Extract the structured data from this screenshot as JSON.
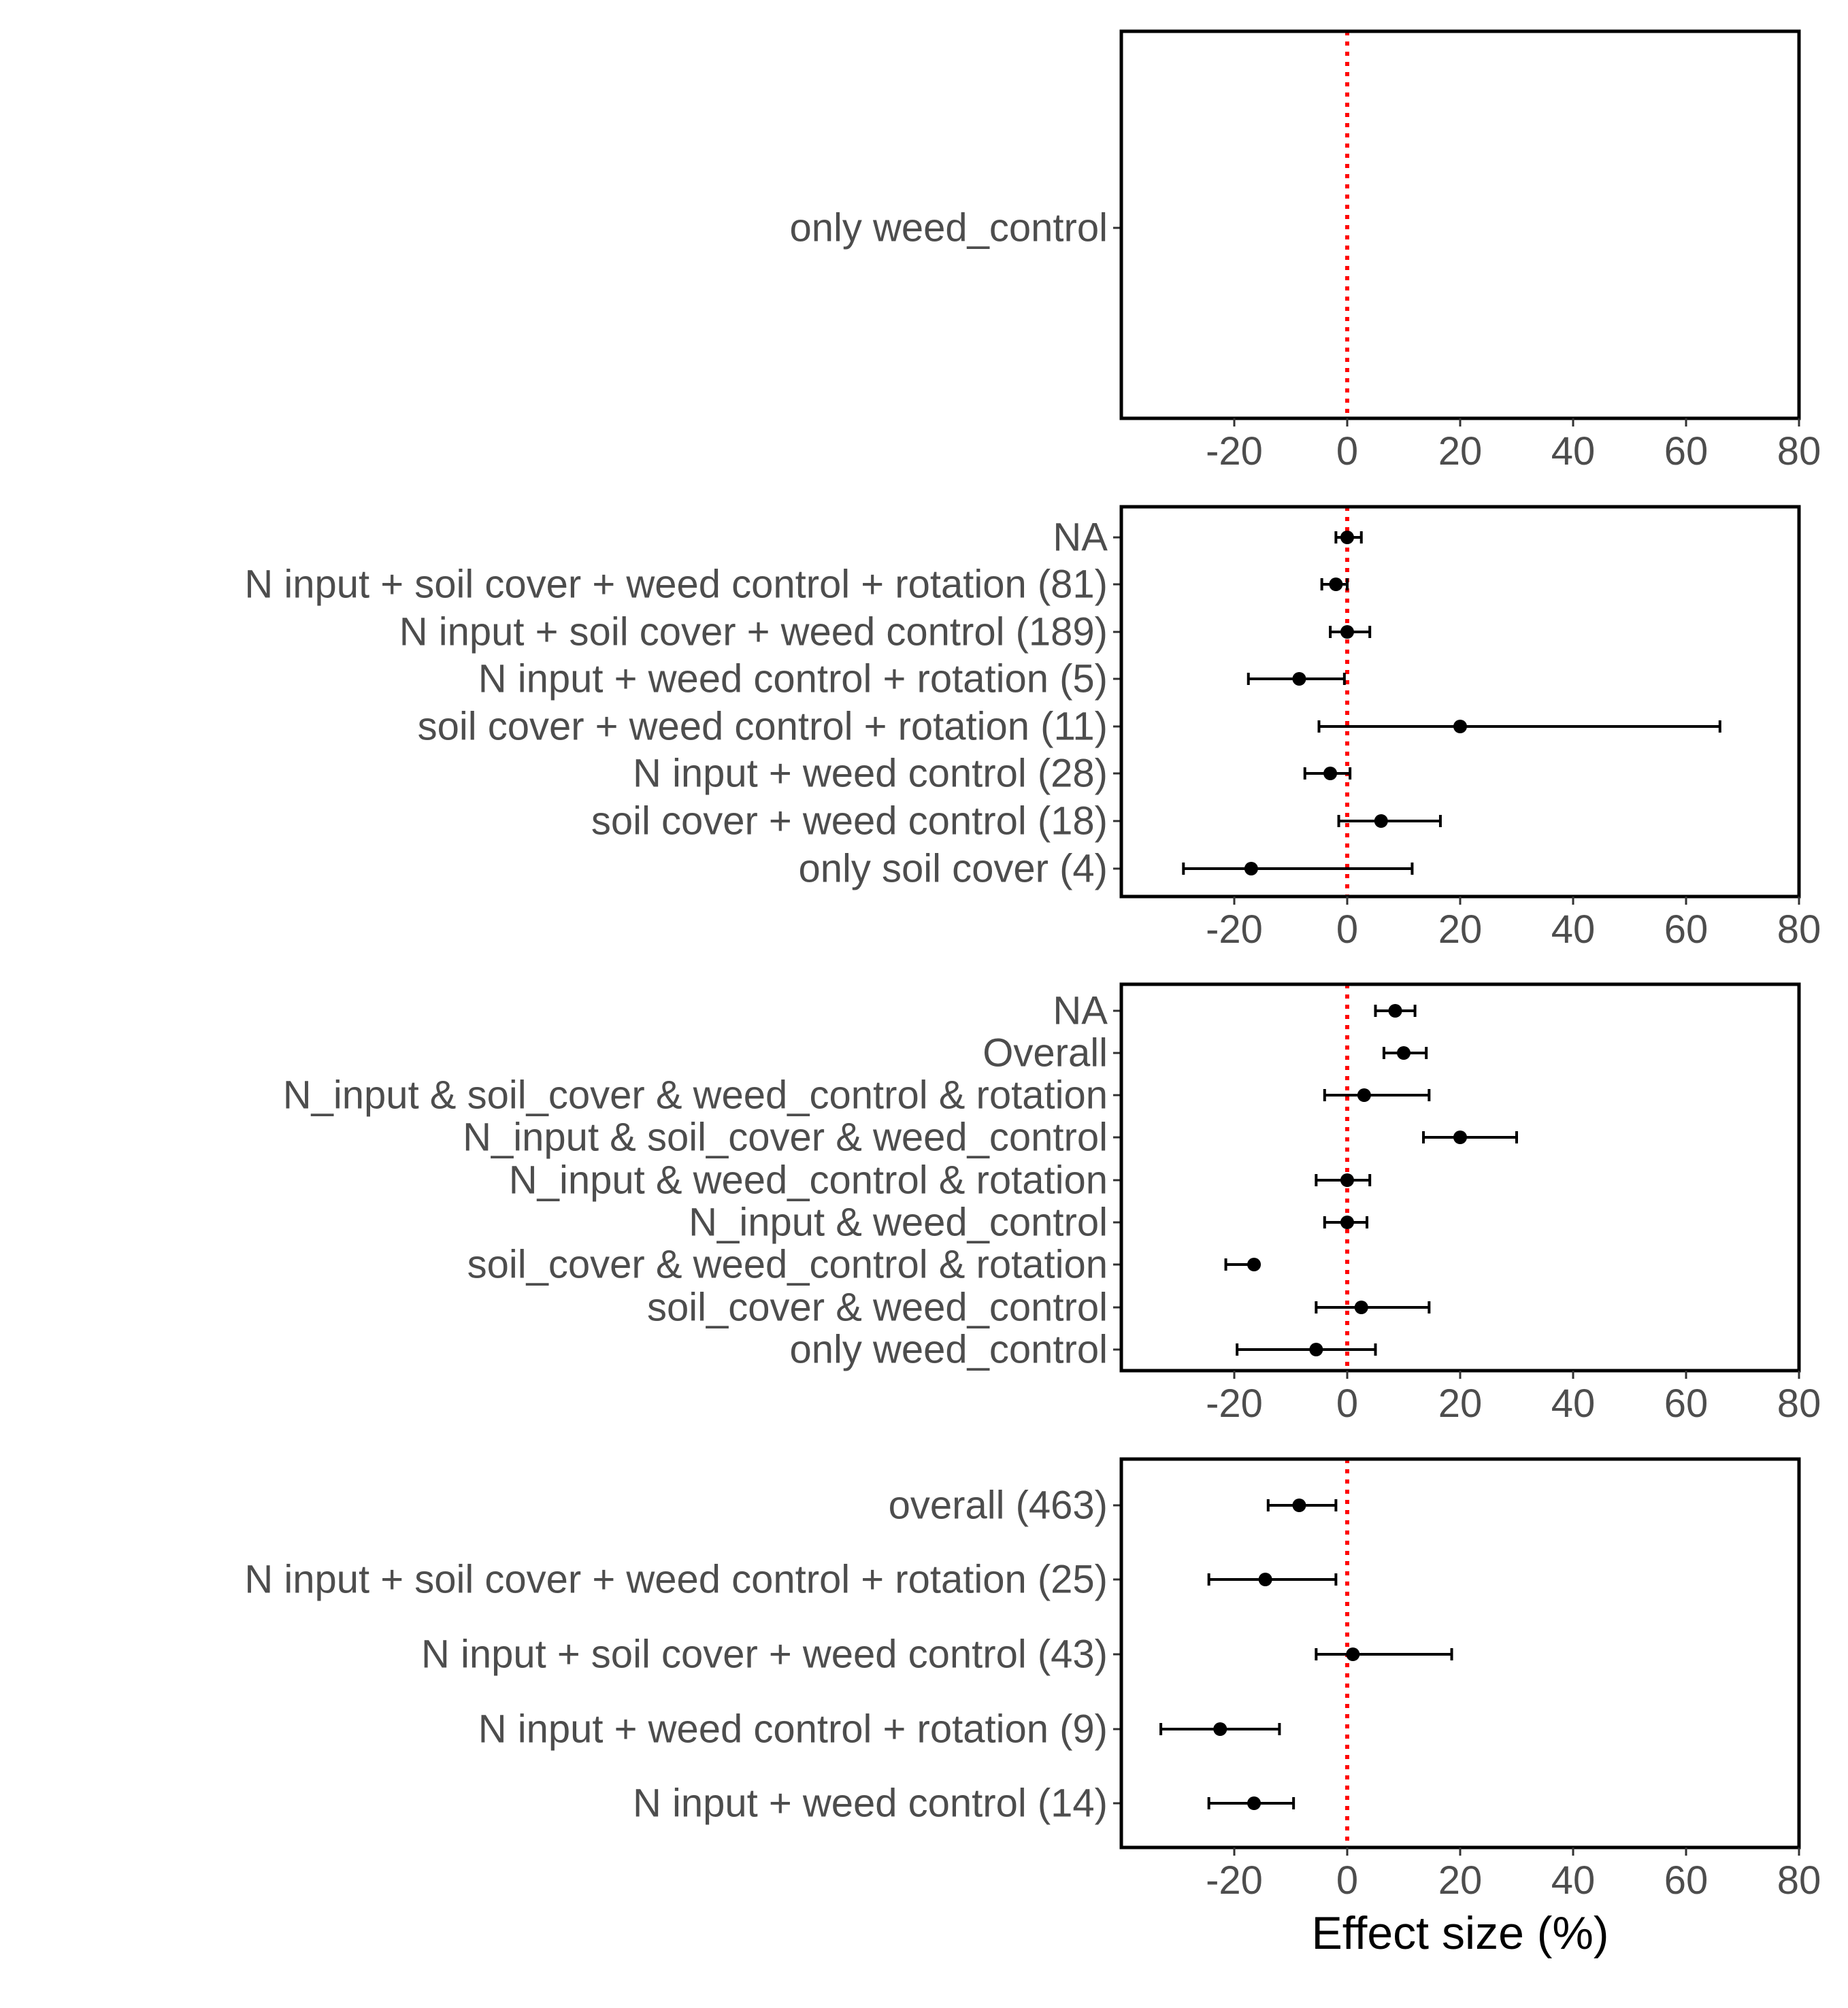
{
  "chart_data": [
    {
      "type": "forest",
      "xlabel": "",
      "xlim": [
        -40,
        80
      ],
      "xticks": [
        -20,
        0,
        20,
        40,
        60,
        80
      ],
      "reference_line": 0,
      "categories": [
        "only weed_control"
      ],
      "estimates": [
        null
      ],
      "ci_low": [
        null
      ],
      "ci_high": [
        null
      ]
    },
    {
      "type": "forest",
      "xlabel": "",
      "xlim": [
        -40,
        80
      ],
      "xticks": [
        -20,
        0,
        20,
        40,
        60,
        80
      ],
      "reference_line": 0,
      "categories": [
        "NA",
        "N input  + soil cover  + weed control  + rotation (81)",
        "N input  + soil cover  + weed control (189)",
        "N input  + weed control  + rotation (5)",
        "soil cover  + weed control  + rotation (11)",
        "N input  + weed control (28)",
        "soil cover  + weed control (18)",
        "only soil cover (4)"
      ],
      "estimates": [
        0,
        -2,
        0,
        -8.5,
        20,
        -3,
        6,
        -17
      ],
      "ci_low": [
        -2,
        -4.5,
        -3,
        -17.5,
        -5,
        -7.5,
        -1.5,
        -29
      ],
      "ci_high": [
        2.5,
        0,
        4,
        -0.5,
        66,
        0.5,
        16.5,
        11.5
      ]
    },
    {
      "type": "forest",
      "xlabel": "",
      "xlim": [
        -40,
        80
      ],
      "xticks": [
        -20,
        0,
        20,
        40,
        60,
        80
      ],
      "reference_line": 0,
      "categories": [
        "NA",
        "Overall",
        "N_input & soil_cover & weed_control & rotation",
        "N_input & soil_cover & weed_control",
        "N_input & weed_control & rotation",
        "N_input & weed_control",
        "soil_cover & weed_control & rotation",
        "soil_cover & weed_control",
        "only weed_control"
      ],
      "estimates": [
        8.5,
        10,
        3,
        20,
        0,
        0,
        -16.5,
        2.5,
        -5.5
      ],
      "ci_low": [
        5,
        6.5,
        -4,
        13.5,
        -5.5,
        -4,
        -21.5,
        -5.5,
        -19.5
      ],
      "ci_high": [
        12,
        14,
        14.5,
        30,
        4,
        3.5,
        -16.5,
        14.5,
        5
      ]
    },
    {
      "type": "forest",
      "xlabel": "Effect size (%)",
      "xlim": [
        -40,
        80
      ],
      "xticks": [
        -20,
        0,
        20,
        40,
        60,
        80
      ],
      "reference_line": 0,
      "categories": [
        "overall (463)",
        "N input  + soil cover  + weed control  + rotation (25)",
        "N input  + soil cover  + weed control (43)",
        "N input  + weed control  + rotation (9)",
        "N input  + weed control (14)"
      ],
      "estimates": [
        -8.5,
        -14.5,
        1,
        -22.5,
        -16.5
      ],
      "ci_low": [
        -14,
        -24.5,
        -5.5,
        -33,
        -24.5
      ],
      "ci_high": [
        -2,
        -2,
        18.5,
        -12,
        -9.5
      ]
    }
  ],
  "colors": {
    "reference_line": "#ff0000",
    "points": "#000000",
    "tick_text": "#4d4d4d",
    "axis_title": "#000000"
  }
}
